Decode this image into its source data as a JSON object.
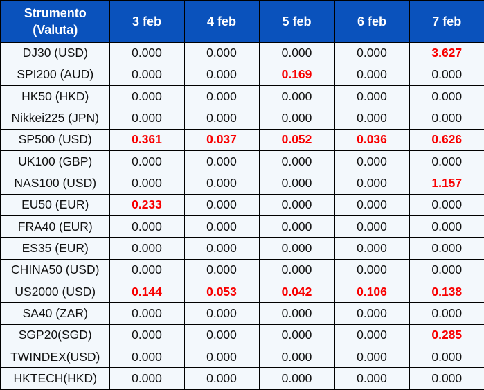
{
  "table": {
    "header": {
      "instrument_line1": "Strumento",
      "instrument_line2": "(Valuta)",
      "dates": [
        "3 feb",
        "4 feb",
        "5 feb",
        "6 feb",
        "7 feb"
      ]
    },
    "rows": [
      {
        "instrument": "DJ30 (USD)",
        "values": [
          "0.000",
          "0.000",
          "0.000",
          "0.000",
          "3.627"
        ],
        "highlight": [
          0,
          0,
          0,
          0,
          1
        ]
      },
      {
        "instrument": "SPI200 (AUD)",
        "values": [
          "0.000",
          "0.000",
          "0.169",
          "0.000",
          "0.000"
        ],
        "highlight": [
          0,
          0,
          1,
          0,
          0
        ]
      },
      {
        "instrument": "HK50 (HKD)",
        "values": [
          "0.000",
          "0.000",
          "0.000",
          "0.000",
          "0.000"
        ],
        "highlight": [
          0,
          0,
          0,
          0,
          0
        ]
      },
      {
        "instrument": "Nikkei225 (JPN)",
        "values": [
          "0.000",
          "0.000",
          "0.000",
          "0.000",
          "0.000"
        ],
        "highlight": [
          0,
          0,
          0,
          0,
          0
        ]
      },
      {
        "instrument": "SP500 (USD)",
        "values": [
          "0.361",
          "0.037",
          "0.052",
          "0.036",
          "0.626"
        ],
        "highlight": [
          1,
          1,
          1,
          1,
          1
        ]
      },
      {
        "instrument": "UK100 (GBP)",
        "values": [
          "0.000",
          "0.000",
          "0.000",
          "0.000",
          "0.000"
        ],
        "highlight": [
          0,
          0,
          0,
          0,
          0
        ]
      },
      {
        "instrument": "NAS100 (USD)",
        "values": [
          "0.000",
          "0.000",
          "0.000",
          "0.000",
          "1.157"
        ],
        "highlight": [
          0,
          0,
          0,
          0,
          1
        ]
      },
      {
        "instrument": "EU50 (EUR)",
        "values": [
          "0.233",
          "0.000",
          "0.000",
          "0.000",
          "0.000"
        ],
        "highlight": [
          1,
          0,
          0,
          0,
          0
        ]
      },
      {
        "instrument": "FRA40 (EUR)",
        "values": [
          "0.000",
          "0.000",
          "0.000",
          "0.000",
          "0.000"
        ],
        "highlight": [
          0,
          0,
          0,
          0,
          0
        ]
      },
      {
        "instrument": "ES35 (EUR)",
        "values": [
          "0.000",
          "0.000",
          "0.000",
          "0.000",
          "0.000"
        ],
        "highlight": [
          0,
          0,
          0,
          0,
          0
        ]
      },
      {
        "instrument": "CHINA50 (USD)",
        "values": [
          "0.000",
          "0.000",
          "0.000",
          "0.000",
          "0.000"
        ],
        "highlight": [
          0,
          0,
          0,
          0,
          0
        ]
      },
      {
        "instrument": "US2000 (USD)",
        "values": [
          "0.144",
          "0.053",
          "0.042",
          "0.106",
          "0.138"
        ],
        "highlight": [
          1,
          1,
          1,
          1,
          1
        ]
      },
      {
        "instrument": "SA40 (ZAR)",
        "values": [
          "0.000",
          "0.000",
          "0.000",
          "0.000",
          "0.000"
        ],
        "highlight": [
          0,
          0,
          0,
          0,
          0
        ]
      },
      {
        "instrument": "SGP20(SGD)",
        "values": [
          "0.000",
          "0.000",
          "0.000",
          "0.000",
          "0.285"
        ],
        "highlight": [
          0,
          0,
          0,
          0,
          1
        ]
      },
      {
        "instrument": "TWINDEX(USD)",
        "values": [
          "0.000",
          "0.000",
          "0.000",
          "0.000",
          "0.000"
        ],
        "highlight": [
          0,
          0,
          0,
          0,
          0
        ]
      },
      {
        "instrument": "HKTECH(HKD)",
        "values": [
          "0.000",
          "0.000",
          "0.000",
          "0.000",
          "0.000"
        ],
        "highlight": [
          0,
          0,
          0,
          0,
          0
        ]
      }
    ]
  },
  "chart_data": {
    "type": "table",
    "title": "Strumento (Valuta)",
    "columns": [
      "Strumento (Valuta)",
      "3 feb",
      "4 feb",
      "5 feb",
      "6 feb",
      "7 feb"
    ],
    "categories": [
      "DJ30 (USD)",
      "SPI200 (AUD)",
      "HK50 (HKD)",
      "Nikkei225 (JPN)",
      "SP500 (USD)",
      "UK100 (GBP)",
      "NAS100 (USD)",
      "EU50 (EUR)",
      "FRA40 (EUR)",
      "ES35 (EUR)",
      "CHINA50 (USD)",
      "US2000 (USD)",
      "SA40 (ZAR)",
      "SGP20(SGD)",
      "TWINDEX(USD)",
      "HKTECH(HKD)"
    ],
    "series": [
      {
        "name": "3 feb",
        "values": [
          0.0,
          0.0,
          0.0,
          0.0,
          0.361,
          0.0,
          0.0,
          0.233,
          0.0,
          0.0,
          0.0,
          0.144,
          0.0,
          0.0,
          0.0,
          0.0
        ]
      },
      {
        "name": "4 feb",
        "values": [
          0.0,
          0.0,
          0.0,
          0.0,
          0.037,
          0.0,
          0.0,
          0.0,
          0.0,
          0.0,
          0.0,
          0.053,
          0.0,
          0.0,
          0.0,
          0.0
        ]
      },
      {
        "name": "5 feb",
        "values": [
          0.0,
          0.169,
          0.0,
          0.0,
          0.052,
          0.0,
          0.0,
          0.0,
          0.0,
          0.0,
          0.0,
          0.042,
          0.0,
          0.0,
          0.0,
          0.0
        ]
      },
      {
        "name": "6 feb",
        "values": [
          0.0,
          0.0,
          0.0,
          0.0,
          0.036,
          0.0,
          0.0,
          0.0,
          0.0,
          0.0,
          0.0,
          0.106,
          0.0,
          0.0,
          0.0,
          0.0
        ]
      },
      {
        "name": "7 feb",
        "values": [
          3.627,
          0.0,
          0.0,
          0.0,
          0.626,
          0.0,
          1.157,
          0.0,
          0.0,
          0.0,
          0.0,
          0.138,
          0.0,
          0.285,
          0.0,
          0.0
        ]
      }
    ],
    "highlight_note": "Non-zero values are rendered in bold red"
  },
  "colors": {
    "header_bg": "#0a52bc",
    "header_text": "#ffffff",
    "cell_bg": "#f3f8fc",
    "value_red": "#f80000",
    "value_black": "#111111",
    "border": "#000000"
  }
}
